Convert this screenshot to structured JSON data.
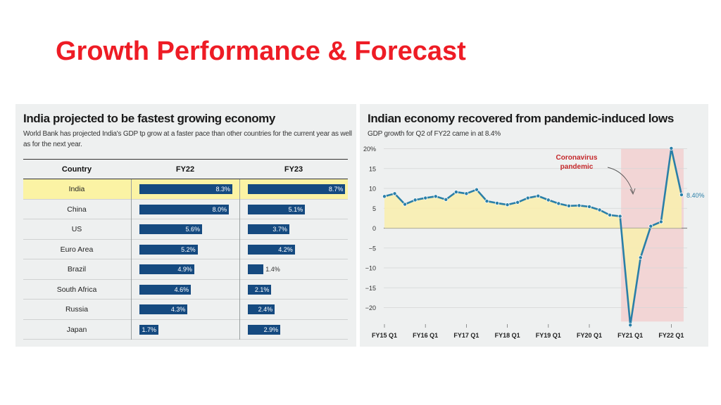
{
  "slide": {
    "title": "Growth Performance & Forecast"
  },
  "left_panel": {
    "title": "India projected to be fastest growing economy",
    "subtitle": "World Bank has projected India's GDP tp grow at a faster pace than other countries for the current year as well as for the next year."
  },
  "right_panel": {
    "title": "Indian economy recovered from pandemic-induced lows",
    "subtitle": "GDP growth for Q2 of FY22 came in at 8.4%"
  },
  "chart_data": [
    {
      "type": "bar",
      "columns": [
        "Country",
        "FY22",
        "FY23"
      ],
      "categories": [
        "India",
        "China",
        "US",
        "Euro Area",
        "Brazil",
        "South Africa",
        "Russia",
        "Japan"
      ],
      "series": [
        {
          "name": "FY22",
          "values": [
            8.3,
            8.0,
            5.6,
            5.2,
            4.9,
            4.6,
            4.3,
            1.7
          ],
          "labels": [
            "8.3%",
            "8.0%",
            "5.6%",
            "5.2%",
            "4.9%",
            "4.6%",
            "4.3%",
            "1.7%"
          ]
        },
        {
          "name": "FY23",
          "values": [
            8.7,
            5.1,
            3.7,
            4.2,
            1.4,
            2.1,
            2.4,
            2.9
          ],
          "labels": [
            "8.7%",
            "5.1%",
            "3.7%",
            "4.2%",
            "1.4%",
            "2.1%",
            "2.4%",
            "2.9%"
          ]
        }
      ],
      "highlight": "India",
      "bar_color": "#154a80",
      "highlight_color": "#fbf3a4"
    },
    {
      "type": "line",
      "x_tick_labels": [
        "FY15 Q1",
        "FY16 Q1",
        "FY17 Q1",
        "FY18 Q1",
        "FY19 Q1",
        "FY20 Q1",
        "FY21 Q1",
        "FY22 Q1"
      ],
      "y_tick_labels": [
        "20%",
        "15",
        "10",
        "5",
        "0",
        "−5",
        "−10",
        "−15",
        "−20"
      ],
      "ylim": [
        -24,
        20
      ],
      "values": [
        8.0,
        8.7,
        6.0,
        7.1,
        7.6,
        8.0,
        7.2,
        9.1,
        8.7,
        9.7,
        6.8,
        6.3,
        5.9,
        6.5,
        7.6,
        8.1,
        7.1,
        6.2,
        5.6,
        5.7,
        5.4,
        4.6,
        3.3,
        3.0,
        -24.4,
        -7.4,
        0.5,
        1.6,
        20.1,
        8.4
      ],
      "end_label": "8.40%",
      "annotation": {
        "text_line1": "Coronavirus",
        "text_line2": "pandemic"
      },
      "line_color": "#2a7fa8",
      "positive_fill": "#f8eeb0",
      "negative_fill": "#f3dfa0",
      "shade_color": "#f2d5d5",
      "annotation_color": "#c4272a"
    }
  ]
}
